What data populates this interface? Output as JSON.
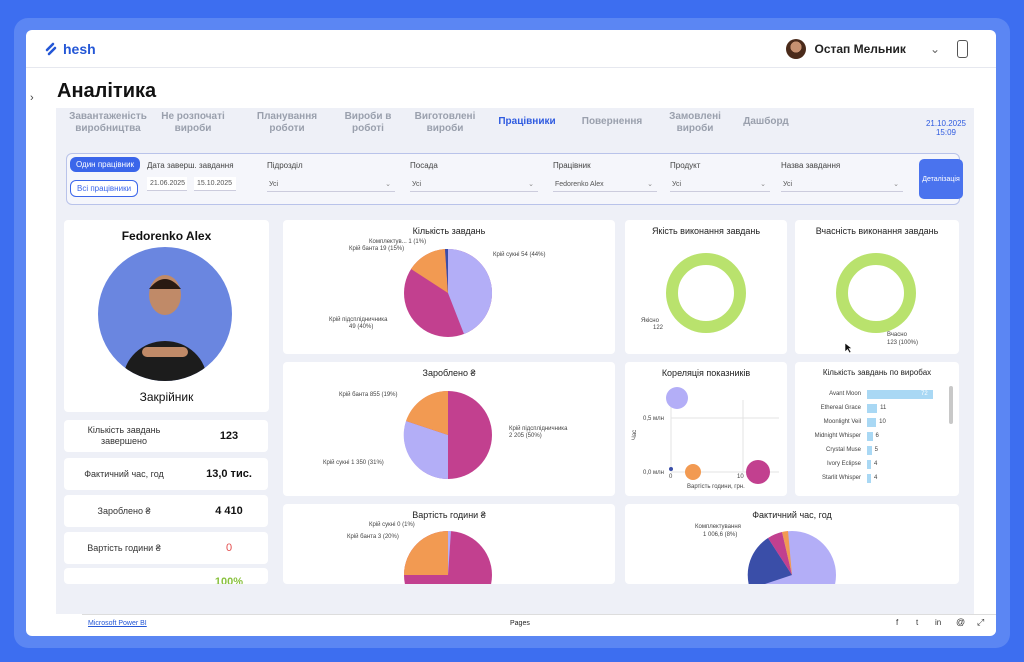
{
  "app": {
    "brand": "hesh",
    "user_name": "Остап Мельник",
    "page_title": "Аналітика"
  },
  "tabs": [
    {
      "label": "Завантаженість виробництва",
      "active": false
    },
    {
      "label": "Не розпочаті вироби",
      "active": false
    },
    {
      "label": "Планування роботи",
      "active": false
    },
    {
      "label": "Вироби в роботі",
      "active": false
    },
    {
      "label": "Виготовлені вироби",
      "active": false
    },
    {
      "label": "Працівники",
      "active": true
    },
    {
      "label": "Повернення",
      "active": false
    },
    {
      "label": "Замовлені вироби",
      "active": false
    },
    {
      "label": "Дашборд",
      "active": false
    }
  ],
  "report_date": "21.10.2025",
  "report_time": "15:09",
  "filters": {
    "one_worker": "Один працівник",
    "all_workers": "Всі працівники",
    "date_label": "Дата заверш. завдання",
    "date_from": "21.06.2025",
    "date_to": "15.10.2025",
    "dept_label": "Підрозділ",
    "dept_value": "Усі",
    "position_label": "Посада",
    "position_value": "Усі",
    "worker_label": "Працівник",
    "worker_value": "Fedorenko Alex",
    "product_label": "Продукт",
    "product_value": "Усі",
    "task_label": "Назва завдання",
    "task_value": "Усі",
    "detail_button": "Деталізація"
  },
  "profile": {
    "name": "Fedorenko Alex",
    "role": "Закрійник"
  },
  "kpis": [
    {
      "label": "Кількість завдань завершено",
      "value": "123"
    },
    {
      "label": "Фактичний час, год",
      "value": "13,0 тис."
    },
    {
      "label": "Зароблено ₴",
      "value": "4 410"
    },
    {
      "label": "Вартість години ₴",
      "value": "0"
    },
    {
      "label": "",
      "value": "100%"
    }
  ],
  "charts": {
    "tasks_title": "Кількість завдань",
    "tasks_labels": [
      "Комплектув... 1 (1%)",
      "Крій банта 19 (15%)",
      "Крій сукні 54 (44%)",
      "Крій підсплідничника",
      "49 (40%)"
    ],
    "earned_title": "Зароблено ₴",
    "earned_labels": [
      "Крій банта 855 (19%)",
      "Крій підсплідничника",
      "2 205 (50%)",
      "Крій сукні 1 350 (31%)"
    ],
    "hourcost_title": "Вартість години ₴",
    "hourcost_labels": [
      "Крій сукні 0 (1%)",
      "Крій банта 3 (20%)"
    ],
    "quality_title": "Якість виконання завдань",
    "quality_labels": [
      "Якісно",
      "122"
    ],
    "ontime_title": "Вчасність виконання завдань",
    "ontime_labels": [
      "Вчасно",
      "123 (100%)"
    ],
    "corr_title": "Кореляція показників",
    "corr_ylabel": "Час",
    "corr_xlabel": "Вартість години, грн.",
    "corr_yticks": [
      "0,5 млн",
      "0,0 млн"
    ],
    "corr_xticks": [
      "0",
      "10"
    ],
    "products_title": "Кількість завдань по виробах",
    "fact_title": "Фактичний час, год",
    "fact_labels": [
      "Комплектування",
      "1 006,6 (8%)"
    ]
  },
  "chart_data": [
    {
      "type": "pie",
      "title": "Кількість завдань",
      "categories": [
        "Крій сукні",
        "Крій підсплідничника",
        "Крій банта",
        "Комплектування"
      ],
      "values": [
        54,
        49,
        19,
        1
      ]
    },
    {
      "type": "pie",
      "title": "Зароблено ₴",
      "categories": [
        "Крій підсплідничника",
        "Крій сукні",
        "Крій банта"
      ],
      "values": [
        2205,
        1350,
        855
      ]
    },
    {
      "type": "bar",
      "title": "Кількість завдань по виробах",
      "categories": [
        "Avant Moon",
        "Ethereal Grace",
        "Moonlight Veil",
        "Midnight Whisper",
        "Crystal Muse",
        "Ivory Eclipse",
        "Starlit Whisper"
      ],
      "values": [
        72,
        11,
        10,
        6,
        5,
        4,
        4
      ]
    }
  ],
  "footer": {
    "powerbi": "Microsoft Power BI",
    "pages": "Pages"
  },
  "colors": {
    "purple": "#b3aef7",
    "magenta": "#c2408f",
    "orange": "#f29a52",
    "navy": "#3a4ea8",
    "green": "#b9e26d",
    "blue": "#3b66ea"
  }
}
